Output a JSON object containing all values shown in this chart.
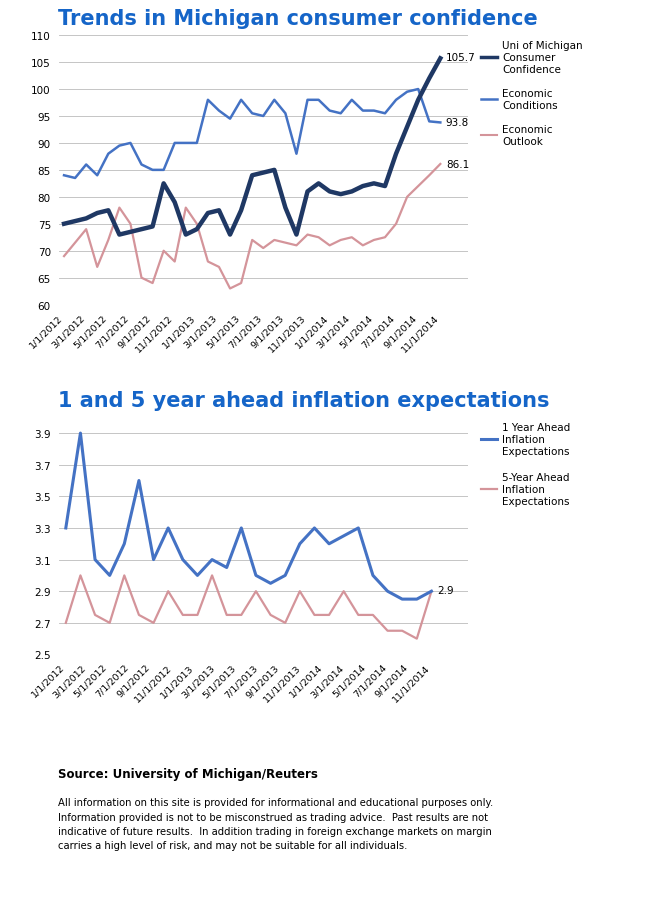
{
  "title1": "Trends in Michigan consumer confidence",
  "title2": "1 and 5 year ahead inflation expectations",
  "source_text": "Source: University of Michigan/Reuters",
  "disclaimer": "All information on this site is provided for informational and educational purposes only.\nInformation provided is not to be misconstrued as trading advice.  Past results are not\nindicative of future results.  In addition trading in foreign exchange markets on margin\ncarries a high level of risk, and may not be suitable for all individuals.",
  "x_labels": [
    "1/1/2012",
    "3/1/2012",
    "5/1/2012",
    "7/1/2012",
    "9/1/2012",
    "11/1/2012",
    "1/1/2013",
    "3/1/2013",
    "5/1/2013",
    "7/1/2013",
    "9/1/2013",
    "11/1/2013",
    "1/1/2014",
    "3/1/2014",
    "5/1/2014",
    "7/1/2014",
    "9/1/2014",
    "11/1/2014"
  ],
  "conf_data": [
    75,
    75.5,
    76,
    77,
    77.5,
    73,
    73.5,
    74,
    74.5,
    82.5,
    79,
    73,
    74,
    77,
    77.5,
    73,
    77.5,
    84,
    84.5,
    85,
    78,
    73,
    81,
    82.5,
    81,
    80.5,
    81,
    82,
    82.5,
    82,
    88,
    93,
    98,
    102,
    105.7
  ],
  "cond_data": [
    84,
    83.5,
    86,
    84,
    88,
    89.5,
    90,
    86,
    85,
    85,
    90,
    90,
    90,
    98,
    96,
    94.5,
    98,
    95.5,
    95,
    98,
    95.5,
    88,
    98,
    98,
    96,
    95.5,
    98,
    96,
    96,
    95.5,
    98,
    99.5,
    100,
    94,
    93.8
  ],
  "outl_data": [
    69,
    71.5,
    74,
    67,
    72,
    78,
    75,
    65,
    64,
    70,
    68,
    78,
    75,
    68,
    67,
    63,
    64,
    72,
    70.5,
    72,
    71.5,
    71,
    73,
    72.5,
    71,
    72,
    72.5,
    71,
    72,
    72.5,
    75,
    80,
    82,
    84,
    86.1
  ],
  "inf1_data": [
    3.3,
    3.9,
    3.1,
    3.0,
    3.2,
    3.6,
    3.1,
    3.3,
    3.1,
    3.0,
    3.1,
    3.05,
    3.3,
    3.0,
    2.95,
    3.0,
    3.2,
    3.3,
    3.2,
    3.25,
    3.3,
    3.0,
    2.9,
    2.85,
    2.85,
    2.9
  ],
  "inf5_data": [
    2.7,
    3.0,
    2.75,
    2.7,
    3.0,
    2.75,
    2.7,
    2.9,
    2.75,
    2.75,
    3.0,
    2.75,
    2.75,
    2.9,
    2.75,
    2.7,
    2.9,
    2.75,
    2.75,
    2.9,
    2.75,
    2.75,
    2.65,
    2.65,
    2.6,
    2.9
  ],
  "chart1_ylim": [
    60,
    110
  ],
  "chart1_yticks": [
    60,
    65,
    70,
    75,
    80,
    85,
    90,
    95,
    100,
    105,
    110
  ],
  "chart2_ylim": [
    2.5,
    4.0
  ],
  "chart2_yticks": [
    2.5,
    2.7,
    2.9,
    3.1,
    3.3,
    3.5,
    3.7,
    3.9
  ],
  "title_color": "#1565C8",
  "line_dark_blue": "#1F3864",
  "line_medium_blue": "#4472C4",
  "line_pink": "#D4949A",
  "bg_color": "#FFFFFF",
  "grid_color": "#BBBBBB"
}
